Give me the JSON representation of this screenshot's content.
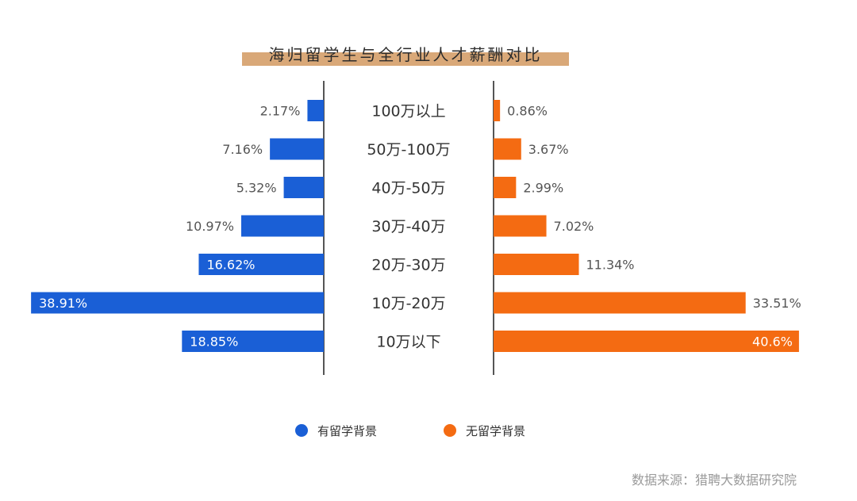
{
  "chart_data": {
    "type": "bar",
    "title": "海归留学生与全行业人才薪酬对比",
    "categories": [
      "100万以上",
      "50万-100万",
      "40万-50万",
      "30万-40万",
      "20万-30万",
      "10万-20万",
      "10万以下"
    ],
    "series": [
      {
        "name": "有留学背景",
        "color": "#1a5fd6",
        "values": [
          2.17,
          7.16,
          5.32,
          10.97,
          16.62,
          38.91,
          18.85
        ],
        "labels": [
          "2.17%",
          "7.16%",
          "5.32%",
          "10.97%",
          "16.62%",
          "38.91%",
          "18.85%"
        ]
      },
      {
        "name": "无留学背景",
        "color": "#f46b12",
        "values": [
          0.86,
          3.67,
          2.99,
          7.02,
          11.34,
          33.51,
          40.6
        ],
        "labels": [
          "0.86%",
          "3.67%",
          "2.99%",
          "7.02%",
          "11.34%",
          "33.51%",
          "40.6%"
        ]
      }
    ],
    "legend_position": "bottom",
    "source": "数据来源：猎聘大数据研究院",
    "colors": {
      "title_band": "#d9a878",
      "axis": "#555555"
    }
  }
}
